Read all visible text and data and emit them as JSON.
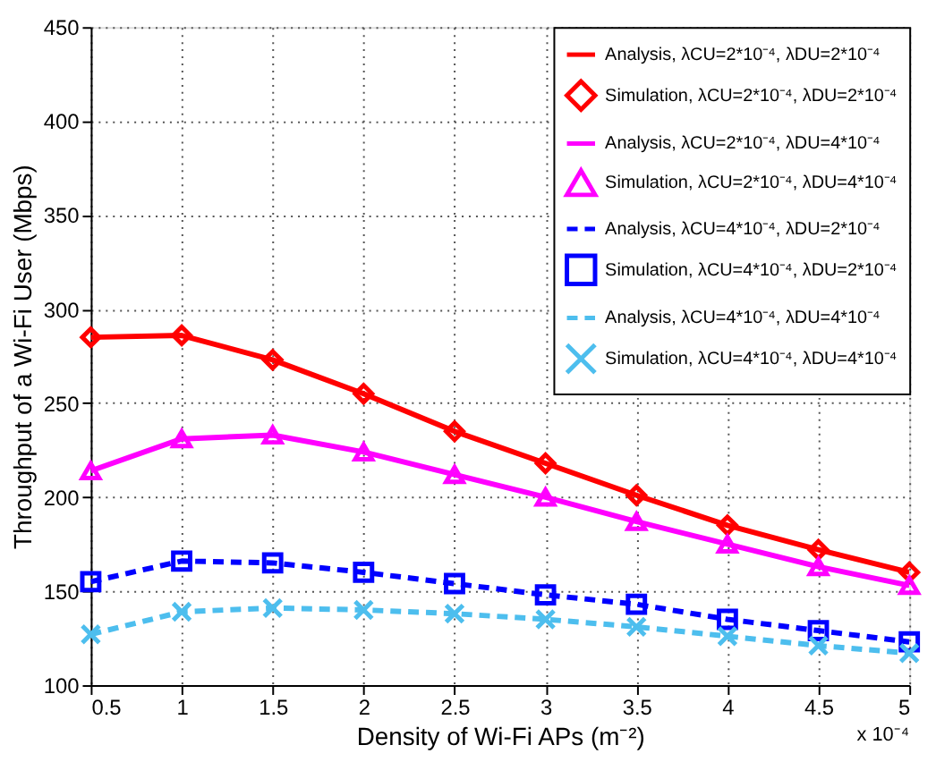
{
  "chart_data": {
    "type": "line",
    "xlabel": "Density of Wi-Fi APs (m⁻²)",
    "ylabel": "Throughput of a Wi-Fi User (Mbps)",
    "x": [
      0.5,
      1,
      1.5,
      2,
      2.5,
      3,
      3.5,
      4,
      4.5,
      5
    ],
    "xlim": [
      0.5,
      5
    ],
    "xticks": [
      0.5,
      1,
      1.5,
      2,
      2.5,
      3,
      3.5,
      4,
      4.5,
      5
    ],
    "ylim": [
      100,
      450
    ],
    "yticks": [
      100,
      150,
      200,
      250,
      300,
      350,
      400,
      450
    ],
    "grid": true,
    "legend": "top right",
    "annotations": [
      "x 10⁻⁴"
    ],
    "series": [
      {
        "name": "Analysis, λCU=2*10⁻⁴, λDU=2*10⁻⁴",
        "type": "line",
        "marker": "none",
        "line_style": "solid",
        "color": "#ff0000",
        "values": [
          285,
          286,
          273,
          255,
          235,
          218,
          201,
          185,
          172,
          160
        ]
      },
      {
        "name": "Simulation, λCU=2*10⁻⁴, λDU=2*10⁻⁴",
        "type": "scatter",
        "marker": "diamond",
        "color": "#ff0000",
        "values": [
          285,
          286,
          273,
          255,
          235,
          218,
          201,
          185,
          172,
          160
        ]
      },
      {
        "name": "Analysis, λCU=2*10⁻⁴, λDU=4*10⁻⁴",
        "type": "line",
        "marker": "none",
        "line_style": "solid",
        "color": "#ff00ff",
        "values": [
          214,
          231,
          233,
          224,
          212,
          200,
          187,
          175,
          163,
          153
        ]
      },
      {
        "name": "Simulation, λCU=2*10⁻⁴, λDU=4*10⁻⁴",
        "type": "scatter",
        "marker": "triangle",
        "color": "#ff00ff",
        "values": [
          214,
          231,
          233,
          224,
          212,
          200,
          187,
          175,
          163,
          153
        ]
      },
      {
        "name": "Analysis, λCU=4*10⁻⁴, λDU=2*10⁻⁴",
        "type": "line",
        "marker": "none",
        "line_style": "dashed",
        "color": "#0000ff",
        "values": [
          155,
          166,
          165,
          160,
          154,
          148,
          143,
          135,
          129,
          123
        ]
      },
      {
        "name": "Simulation, λCU=4*10⁻⁴, λDU=2*10⁻⁴",
        "type": "scatter",
        "marker": "square",
        "color": "#0000ff",
        "values": [
          155,
          166,
          165,
          160,
          154,
          148,
          143,
          135,
          129,
          123
        ]
      },
      {
        "name": "Analysis, λCU=4*10⁻⁴, λDU=4*10⁻⁴",
        "type": "line",
        "marker": "none",
        "line_style": "dashed",
        "color": "#4dbeee",
        "values": [
          127,
          139,
          141,
          140,
          138,
          135,
          131,
          126,
          121,
          117
        ]
      },
      {
        "name": "Simulation, λCU=4*10⁻⁴, λDU=4*10⁻⁴",
        "type": "scatter",
        "marker": "cross",
        "color": "#4dbeee",
        "values": [
          127,
          139,
          141,
          140,
          138,
          135,
          131,
          126,
          121,
          117
        ]
      }
    ]
  }
}
